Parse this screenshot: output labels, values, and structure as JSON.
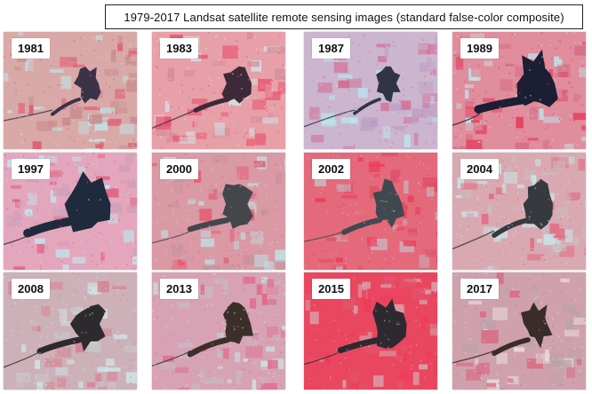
{
  "title": "1979-2017 Landsat satellite remote sensing images (standard false-color composite)",
  "tiles": [
    {
      "year": "1981",
      "palette": {
        "base": "#d9a9a8",
        "field": "#c88a8b",
        "veg": "#e2566d",
        "soil": "#bfe3e6",
        "water": "#3b3247"
      },
      "water_level": 0.25,
      "variant": 0
    },
    {
      "year": "1983",
      "palette": {
        "base": "#e7a0a8",
        "field": "#d88a93",
        "veg": "#e84d67",
        "soil": "#cfe6ea",
        "water": "#3d2a38"
      },
      "water_level": 0.4,
      "variant": 1
    },
    {
      "year": "1987",
      "palette": {
        "base": "#cbb5cf",
        "field": "#bfa0c4",
        "veg": "#d56a8f",
        "soil": "#b7e8ee",
        "water": "#2f3446"
      },
      "water_level": 0.2,
      "variant": 2
    },
    {
      "year": "1989",
      "palette": {
        "base": "#e08d9d",
        "field": "#d46d84",
        "veg": "#e63c5c",
        "soil": "#c0e4ea",
        "water": "#1c1e33"
      },
      "water_level": 0.9,
      "variant": 3
    },
    {
      "year": "1997",
      "palette": {
        "base": "#e3a6bc",
        "field": "#cfa0b8",
        "veg": "#e25a7c",
        "soil": "#bfe8ee",
        "water": "#1f2a3c"
      },
      "water_level": 0.95,
      "variant": 4
    },
    {
      "year": "2000",
      "palette": {
        "base": "#d99aa5",
        "field": "#c8939e",
        "veg": "#e65a6f",
        "soil": "#bfdfe1",
        "water": "#43474c"
      },
      "water_level": 0.55,
      "variant": 5
    },
    {
      "year": "2002",
      "palette": {
        "base": "#e46a7b",
        "field": "#dc4f66",
        "veg": "#ee3c5a",
        "soil": "#c6b9bf",
        "water": "#3e4a4f"
      },
      "water_level": 0.5,
      "variant": 6
    },
    {
      "year": "2004",
      "palette": {
        "base": "#d9a9b1",
        "field": "#c9bcc2",
        "veg": "#e16a82",
        "soil": "#c8e6e8",
        "water": "#36393d"
      },
      "water_level": 0.45,
      "variant": 7
    },
    {
      "year": "2008",
      "palette": {
        "base": "#cdb1b8",
        "field": "#c8c4c8",
        "veg": "#d97d8f",
        "soil": "#d1e7ea",
        "water": "#2d2a2e"
      },
      "water_level": 0.6,
      "variant": 8
    },
    {
      "year": "2013",
      "palette": {
        "base": "#d7a3b4",
        "field": "#c7b8c4",
        "veg": "#e0698a",
        "soil": "#cbe8ea",
        "water": "#3b2f2a"
      },
      "water_level": 0.55,
      "variant": 9
    },
    {
      "year": "2015",
      "palette": {
        "base": "#e9475f",
        "field": "#e0556c",
        "veg": "#f2385a",
        "soil": "#d7a7b2",
        "water": "#2c2a30"
      },
      "water_level": 0.6,
      "variant": 10
    },
    {
      "year": "2017",
      "palette": {
        "base": "#cfa1ad",
        "field": "#bba2a8",
        "veg": "#d96a84",
        "soil": "#e8dede",
        "water": "#3a2c28"
      },
      "water_level": 0.45,
      "variant": 11
    }
  ]
}
